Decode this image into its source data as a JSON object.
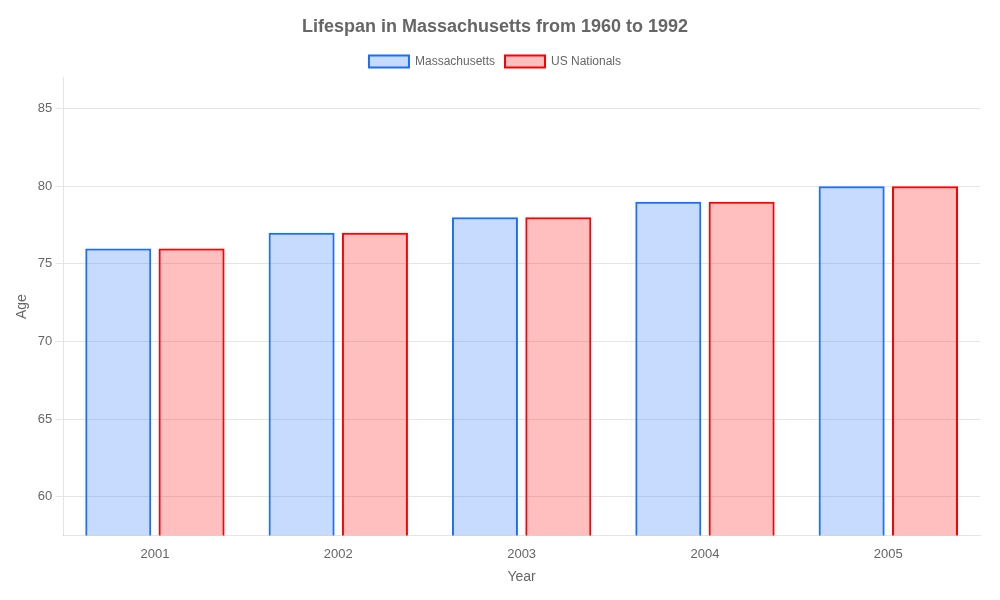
{
  "chart_data": {
    "type": "bar",
    "title": "Lifespan in Massachusetts from 1960 to 1992",
    "xlabel": "Year",
    "ylabel": "Age",
    "categories": [
      "2001",
      "2002",
      "2003",
      "2004",
      "2005"
    ],
    "series": [
      {
        "name": "Massachusetts",
        "color": "#1a6efc",
        "values": [
          76,
          77,
          78,
          79,
          80
        ]
      },
      {
        "name": "US Nationals",
        "color": "#ff0000",
        "values": [
          76,
          77,
          78,
          79,
          80
        ]
      }
    ],
    "ylim": [
      57.5,
      87
    ],
    "yticks": [
      60,
      65,
      70,
      75,
      80,
      85
    ],
    "grid": true,
    "legend": "top"
  }
}
